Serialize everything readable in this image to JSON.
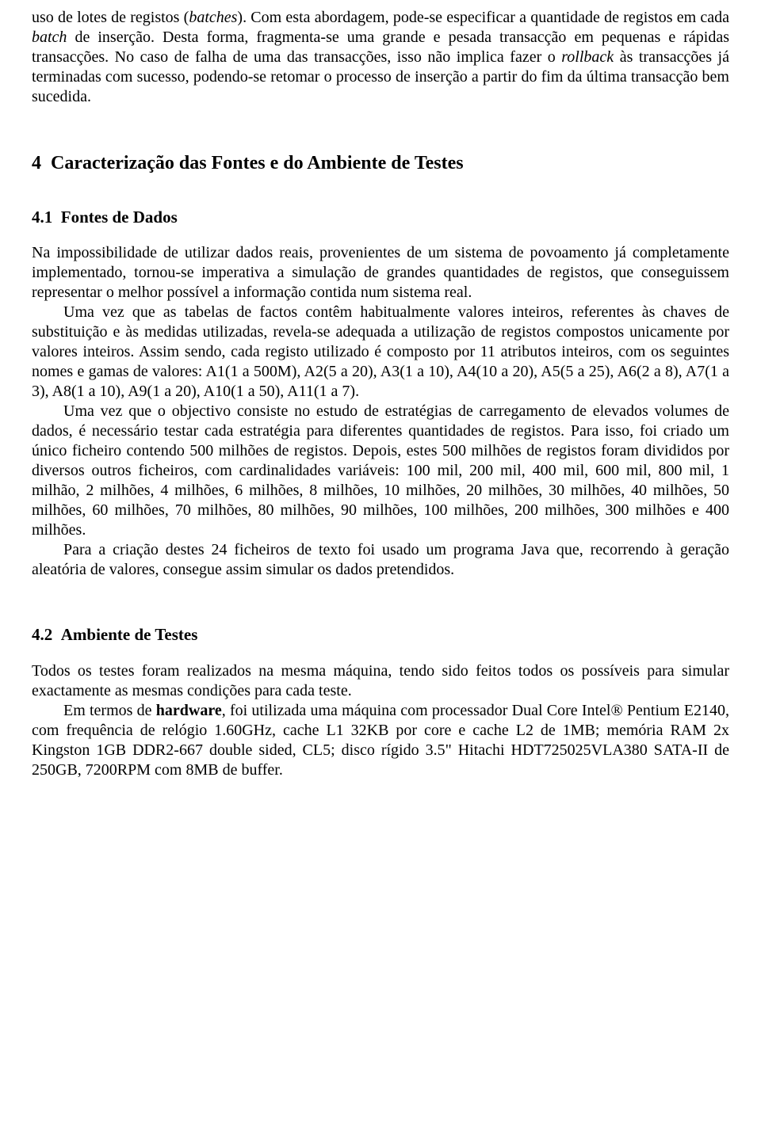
{
  "intro_paragraph_html": "uso de lotes de registos (<span class=\"italic\">batches</span>). Com esta abordagem, pode-se especificar a quantidade de registos em cada <span class=\"italic\">batch</span> de inserção. Desta forma, fragmenta-se uma grande e pesada transacção em pequenas e rápidas transacções. No caso de falha de uma das transacções, isso não implica fazer o <span class=\"italic\">rollback</span> às transacções já terminadas com sucesso, podendo-se retomar o processo de inserção a partir do fim da última transacção bem sucedida.",
  "section4": {
    "number": "4",
    "title": "Caracterização das Fontes e do Ambiente de Testes"
  },
  "section4_1": {
    "number": "4.1",
    "title": "Fontes de Dados",
    "p1": "Na impossibilidade de utilizar dados reais, provenientes de um sistema de povoamento já completamente implementado, tornou-se imperativa a simulação de grandes quantidades de registos, que conseguissem representar o melhor possível a informação contida num sistema real.",
    "p2": "Uma vez que as tabelas de factos contêm habitualmente valores inteiros, referentes às chaves de substituição e às medidas utilizadas, revela-se adequada a utilização de registos compostos unicamente por valores inteiros. Assim sendo, cada registo utilizado é composto por 11 atributos inteiros, com os seguintes nomes e gamas de valores: A1(1 a 500M), A2(5 a 20), A3(1 a 10), A4(10 a 20), A5(5 a 25), A6(2 a 8), A7(1 a 3), A8(1 a 10), A9(1 a 20), A10(1 a 50), A11(1 a 7).",
    "p3": "Uma vez que o objectivo consiste no estudo de estratégias de carregamento de elevados volumes de dados, é necessário testar cada estratégia para diferentes quantidades de registos. Para isso, foi criado um único ficheiro contendo 500 milhões de registos. Depois, estes 500 milhões de registos foram divididos por diversos outros ficheiros, com cardinalidades variáveis: 100 mil, 200 mil, 400 mil, 600 mil, 800 mil, 1 milhão, 2 milhões, 4 milhões, 6 milhões, 8 milhões, 10 milhões, 20 milhões, 30 milhões, 40 milhões, 50 milhões, 60 milhões, 70 milhões, 80 milhões, 90 milhões, 100 milhões, 200 milhões, 300 milhões e 400 milhões.",
    "p4": "Para a criação destes 24 ficheiros de texto foi usado um programa Java que, recorrendo à geração aleatória de valores, consegue assim simular os dados pretendidos."
  },
  "section4_2": {
    "number": "4.2",
    "title": "Ambiente de Testes",
    "p1": "Todos os testes foram realizados na mesma máquina, tendo sido feitos todos os possíveis para simular exactamente as mesmas condições para cada teste.",
    "p2_html": "Em termos de <span class=\"bold\">hardware</span>, foi utilizada uma máquina com processador Dual Core Intel® Pentium E2140, com frequência de relógio 1.60GHz, cache L1 32KB por core e cache L2 de 1MB; memória RAM 2x Kingston 1GB DDR2-667 double sided, CL5; disco rígido 3.5\" Hitachi HDT725025VLA380 SATA-II de 250GB, 7200RPM com 8MB de buffer."
  }
}
